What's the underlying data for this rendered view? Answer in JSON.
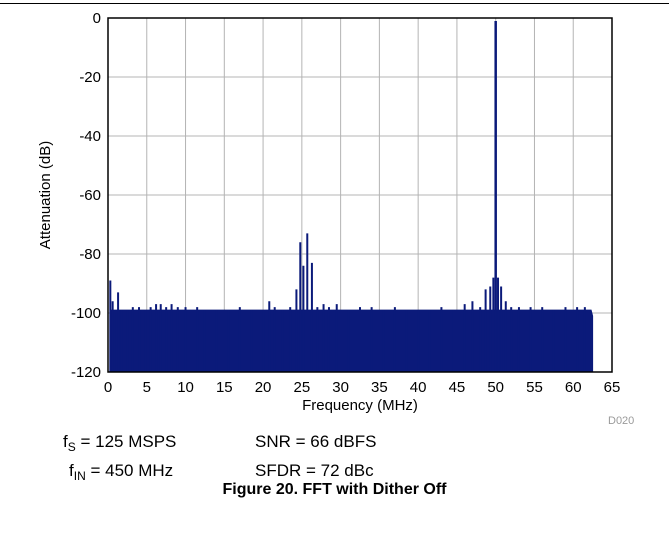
{
  "chart_data": {
    "type": "line",
    "xlabel": "Frequency (MHz)",
    "ylabel": "Attenuation (dB)",
    "xlim": [
      0,
      65
    ],
    "ylim": [
      -120,
      0
    ],
    "xticks": [
      "0",
      "5",
      "10",
      "15",
      "20",
      "25",
      "30",
      "35",
      "40",
      "45",
      "50",
      "55",
      "60",
      "65"
    ],
    "yticks": [
      "0",
      "-20",
      "-40",
      "-60",
      "-80",
      "-100",
      "-120"
    ],
    "grid": true,
    "line_color": "#0b1a7a",
    "noise_floor_db": -101,
    "noise_floor_bottom_db": -120,
    "noise_band_end_mhz": 62.5,
    "series": [
      {
        "x": [
          0.3,
          0.6,
          0.9,
          1.3,
          1.8,
          2.5,
          3.2,
          4.0,
          4.8,
          5.5,
          6.2,
          6.8,
          7.5,
          8.2,
          9.0,
          10.0,
          11.5,
          12.5,
          14.0,
          15.5,
          17.0,
          18.5,
          20.0,
          20.8,
          21.5,
          22.5,
          23.5,
          24.3,
          24.8,
          25.2,
          25.7,
          26.3,
          27.0,
          27.8,
          28.5,
          29.5,
          31.0,
          32.5,
          34.0,
          35.5,
          37.0,
          38.5,
          40.0,
          41.5,
          43.0,
          44.5,
          46.0,
          47.0,
          48.0,
          48.7,
          49.3,
          49.7,
          50.0,
          50.3,
          50.7,
          51.3,
          52.0,
          53.0,
          54.5,
          56.0,
          57.5,
          59.0,
          60.5,
          61.5,
          62.3
        ],
        "values": [
          -89,
          -96,
          -100,
          -93,
          -99,
          -99,
          -98,
          -98,
          -99,
          -98,
          -97,
          -97,
          -98,
          -97,
          -98,
          -98,
          -98,
          -99,
          -99,
          -99,
          -98,
          -99,
          -99,
          -96,
          -98,
          -99,
          -98,
          -92,
          -76,
          -84,
          -73,
          -83,
          -98,
          -97,
          -98,
          -97,
          -99,
          -98,
          -98,
          -99,
          -98,
          -99,
          -99,
          -99,
          -98,
          -99,
          -97,
          -96,
          -98,
          -92,
          -91,
          -88,
          -1,
          -88,
          -91,
          -96,
          -98,
          -98,
          -98,
          -98,
          -99,
          -98,
          -98,
          -98,
          -101
        ]
      }
    ]
  },
  "code": "D020",
  "conditions": {
    "fs_main": "f",
    "fs_sub": "S",
    "fs_value": " = 125 MSPS",
    "fin_main": "f",
    "fin_sub": "IN",
    "fin_value": " = 450 MHz",
    "snr": "SNR = 66 dBFS",
    "sfdr": "SFDR = 72 dBc"
  },
  "caption": "Figure 20. FFT with Dither Off"
}
